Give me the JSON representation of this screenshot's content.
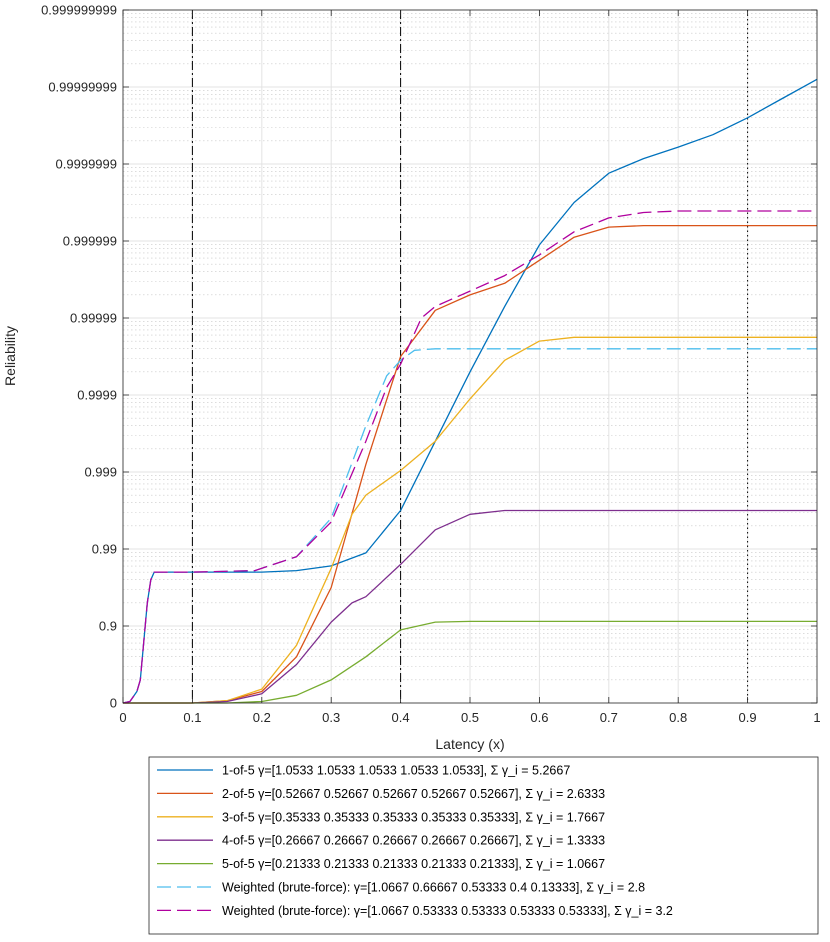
{
  "chart_data": {
    "type": "line",
    "xlabel": "Latency (x)",
    "ylabel": "Reliability",
    "xlim": [
      0,
      1
    ],
    "x_ticks": [
      0,
      0.1,
      0.2,
      0.3,
      0.4,
      0.5,
      0.6,
      0.7,
      0.8,
      0.9,
      1
    ],
    "x_tick_labels": [
      "0",
      "0.1",
      "0.2",
      "0.3",
      "0.4",
      "0.5",
      "0.6",
      "0.7",
      "0.8",
      "0.9",
      "1"
    ],
    "y_scale": "log-nines",
    "y_nines_range": [
      0,
      9
    ],
    "y_tick_labels": [
      "0",
      "0.9",
      "0.99",
      "0.999",
      "0.9999",
      "0.99999",
      "0.999999",
      "0.9999999",
      "0.99999999",
      "0.999999999"
    ],
    "grid": true,
    "vertical_markers": [
      {
        "x": 0.1,
        "style": "dashdot"
      },
      {
        "x": 0.4,
        "style": "dashdot"
      },
      {
        "x": 0.9,
        "style": "dotted"
      }
    ],
    "legend_position": "below",
    "series": [
      {
        "name": "1-of-5",
        "label": "1-of-5  γ=[1.0533      1.0533      1.0533      1.0533      1.0533], Σ  γ_i = 5.2667",
        "color": "#0072BD",
        "dash": "solid",
        "x": [
          0,
          0.01,
          0.02,
          0.025,
          0.03,
          0.035,
          0.04,
          0.045,
          0.1,
          0.2,
          0.25,
          0.3,
          0.35,
          0.4,
          0.45,
          0.5,
          0.55,
          0.6,
          0.65,
          0.7,
          0.75,
          0.8,
          0.85,
          0.9,
          0.95,
          1.0
        ],
        "nines": [
          0,
          0.02,
          0.15,
          0.3,
          0.8,
          1.3,
          1.6,
          1.7,
          1.7,
          1.7,
          1.72,
          1.78,
          1.95,
          2.5,
          3.4,
          4.3,
          5.15,
          5.95,
          6.5,
          6.88,
          7.07,
          7.22,
          7.38,
          7.6,
          7.85,
          8.1
        ]
      },
      {
        "name": "2-of-5",
        "label": "2-of-5  γ=[0.52667     0.52667     0.52667     0.52667     0.52667], Σ  γ_i = 2.6333",
        "color": "#D95319",
        "dash": "solid",
        "x": [
          0,
          0.1,
          0.15,
          0.2,
          0.25,
          0.3,
          0.35,
          0.4,
          0.45,
          0.5,
          0.55,
          0.6,
          0.65,
          0.7,
          0.75,
          0.8,
          0.9,
          1.0
        ],
        "nines": [
          0,
          0.0,
          0.03,
          0.15,
          0.6,
          1.5,
          3.1,
          4.5,
          5.1,
          5.3,
          5.45,
          5.75,
          6.05,
          6.18,
          6.2,
          6.2,
          6.2,
          6.2
        ]
      },
      {
        "name": "3-of-5",
        "label": "3-of-5  γ=[0.35333     0.35333     0.35333     0.35333     0.35333], Σ  γ_i = 1.7667",
        "color": "#EDB120",
        "dash": "solid",
        "x": [
          0,
          0.1,
          0.15,
          0.2,
          0.25,
          0.3,
          0.33,
          0.35,
          0.4,
          0.45,
          0.5,
          0.55,
          0.6,
          0.65,
          0.7,
          0.8,
          0.9,
          1.0
        ],
        "nines": [
          0,
          0.0,
          0.03,
          0.18,
          0.75,
          1.75,
          2.45,
          2.7,
          3.02,
          3.4,
          3.95,
          4.45,
          4.7,
          4.75,
          4.75,
          4.75,
          4.75,
          4.75
        ]
      },
      {
        "name": "4-of-5",
        "label": "4-of-5  γ=[0.26667     0.26667     0.26667     0.26667     0.26667], Σ  γ_i = 1.3333",
        "color": "#7E2F8E",
        "dash": "solid",
        "x": [
          0,
          0.1,
          0.15,
          0.2,
          0.25,
          0.3,
          0.33,
          0.35,
          0.4,
          0.45,
          0.5,
          0.55,
          0.6,
          0.7,
          0.8,
          0.9,
          1.0
        ],
        "nines": [
          0,
          0.0,
          0.02,
          0.12,
          0.5,
          1.05,
          1.3,
          1.38,
          1.8,
          2.25,
          2.45,
          2.5,
          2.5,
          2.5,
          2.5,
          2.5,
          2.5
        ]
      },
      {
        "name": "5-of-5",
        "label": "5-of-5  γ=[0.21333     0.21333     0.21333     0.21333     0.21333], Σ  γ_i = 1.0667",
        "color": "#77AC30",
        "dash": "solid",
        "x": [
          0,
          0.1,
          0.15,
          0.2,
          0.25,
          0.3,
          0.35,
          0.4,
          0.45,
          0.5,
          0.55,
          0.6,
          0.7,
          0.8,
          0.9,
          1.0
        ],
        "nines": [
          0,
          0.0,
          0.0,
          0.02,
          0.1,
          0.3,
          0.6,
          0.95,
          1.05,
          1.06,
          1.06,
          1.06,
          1.06,
          1.06,
          1.06,
          1.06
        ]
      },
      {
        "name": "Weighted (brute-force) 2.8",
        "label": "Weighted (brute-force):  γ=[1.0667     0.66667     0.53333          0.4     0.13333], Σ  γ_i = 2.8",
        "color": "#4DBEEE",
        "dash": "dashed",
        "x": [
          0,
          0.01,
          0.02,
          0.025,
          0.03,
          0.035,
          0.04,
          0.045,
          0.1,
          0.19,
          0.25,
          0.3,
          0.35,
          0.38,
          0.4,
          0.42,
          0.45,
          0.5,
          0.6,
          0.7,
          0.8,
          0.9,
          1.0
        ],
        "nines": [
          0,
          0.02,
          0.15,
          0.3,
          0.8,
          1.3,
          1.6,
          1.7,
          1.7,
          1.72,
          1.9,
          2.4,
          3.6,
          4.25,
          4.45,
          4.58,
          4.6,
          4.6,
          4.6,
          4.6,
          4.6,
          4.6,
          4.6
        ]
      },
      {
        "name": "Weighted (brute-force) 3.2",
        "label": "Weighted (brute-force):  γ=[1.0667     0.53333     0.53333     0.53333     0.53333], Σ  γ_i = 3.2",
        "color": "#B0009E",
        "dash": "dashed",
        "x": [
          0,
          0.01,
          0.02,
          0.025,
          0.03,
          0.035,
          0.04,
          0.045,
          0.1,
          0.19,
          0.25,
          0.3,
          0.35,
          0.38,
          0.4,
          0.43,
          0.45,
          0.5,
          0.55,
          0.6,
          0.65,
          0.7,
          0.75,
          0.8,
          0.9,
          1.0
        ],
        "nines": [
          0,
          0.02,
          0.15,
          0.3,
          0.8,
          1.3,
          1.6,
          1.7,
          1.7,
          1.72,
          1.9,
          2.35,
          3.4,
          4.1,
          4.4,
          5.0,
          5.15,
          5.35,
          5.55,
          5.82,
          6.12,
          6.3,
          6.37,
          6.39,
          6.39,
          6.39
        ]
      }
    ]
  }
}
